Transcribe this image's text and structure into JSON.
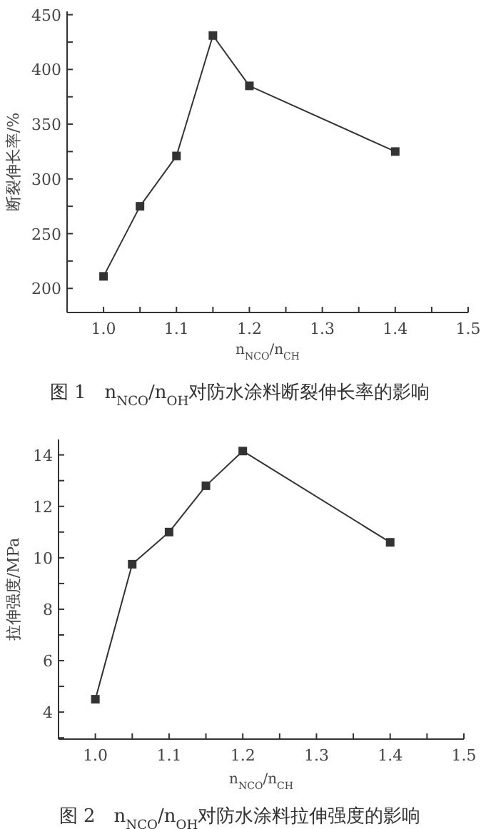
{
  "chart_data": [
    {
      "type": "line",
      "title": "图 1　n$_{NCO}$/n$_{OH}$对防水涂料断裂伸长率的影响",
      "xlabel": "n$_{NCO}$/n$_{CH}$",
      "ylabel": "断裂伸长率/%",
      "x": [
        1.0,
        1.05,
        1.1,
        1.15,
        1.2,
        1.4
      ],
      "series": [
        {
          "color": "#333333",
          "values": [
            211,
            275,
            321,
            431,
            385,
            325
          ]
        }
      ],
      "xlim": [
        0.95,
        1.5
      ],
      "ylim": [
        178,
        453
      ],
      "marker": "square",
      "line_style": "solid",
      "xticks": [
        {
          "value": 0.95,
          "label": null
        },
        {
          "value": 1.0,
          "label": "1.0"
        },
        {
          "value": 1.05,
          "label": null
        },
        {
          "value": 1.1,
          "label": "1.1"
        },
        {
          "value": 1.15,
          "label": null
        },
        {
          "value": 1.2,
          "label": "1.2"
        },
        {
          "value": 1.25,
          "label": null
        },
        {
          "value": 1.3,
          "label": "1.3"
        },
        {
          "value": 1.35,
          "label": null
        },
        {
          "value": 1.4,
          "label": "1.4"
        },
        {
          "value": 1.45,
          "label": null
        },
        {
          "value": 1.5,
          "label": "1.5"
        }
      ],
      "yticks": [
        200,
        {
          "value": 225,
          "label": null
        },
        250,
        {
          "value": 275,
          "label": null
        },
        300,
        {
          "value": 325,
          "label": null
        },
        350,
        {
          "value": 375,
          "label": null
        },
        400,
        {
          "value": 425,
          "label": null
        },
        450
      ]
    },
    {
      "type": "line",
      "title": "图 2　n$_{NCO}$/n$_{OH}$对防水涂料拉伸强度的影响",
      "xlabel": "n$_{NCO}$/n$_{CH}$",
      "ylabel": "拉伸强度/MPa",
      "x": [
        1.0,
        1.05,
        1.1,
        1.15,
        1.2,
        1.4
      ],
      "series": [
        {
          "color": "#333333",
          "values": [
            4.5,
            9.75,
            11.0,
            12.8,
            14.15,
            10.6
          ]
        }
      ],
      "xlim": [
        0.95,
        1.5
      ],
      "ylim": [
        2.95,
        14.6
      ],
      "marker": "square",
      "line_style": "solid",
      "xticks": [
        {
          "value": 0.95,
          "label": null
        },
        {
          "value": 1.0,
          "label": "1.0"
        },
        {
          "value": 1.05,
          "label": null
        },
        {
          "value": 1.1,
          "label": "1.1"
        },
        {
          "value": 1.15,
          "label": null
        },
        {
          "value": 1.2,
          "label": "1.2"
        },
        {
          "value": 1.25,
          "label": null
        },
        {
          "value": 1.3,
          "label": "1.3"
        },
        {
          "value": 1.35,
          "label": null
        },
        {
          "value": 1.4,
          "label": "1.4"
        },
        {
          "value": 1.45,
          "label": null
        },
        {
          "value": 1.5,
          "label": "1.5"
        }
      ],
      "yticks": [
        {
          "value": 3,
          "label": null
        },
        4,
        {
          "value": 5,
          "label": null
        },
        6,
        {
          "value": 7,
          "label": null
        },
        8,
        {
          "value": 9,
          "label": null
        },
        10,
        {
          "value": 11,
          "label": null
        },
        12,
        {
          "value": 13,
          "label": null
        },
        14
      ]
    }
  ]
}
